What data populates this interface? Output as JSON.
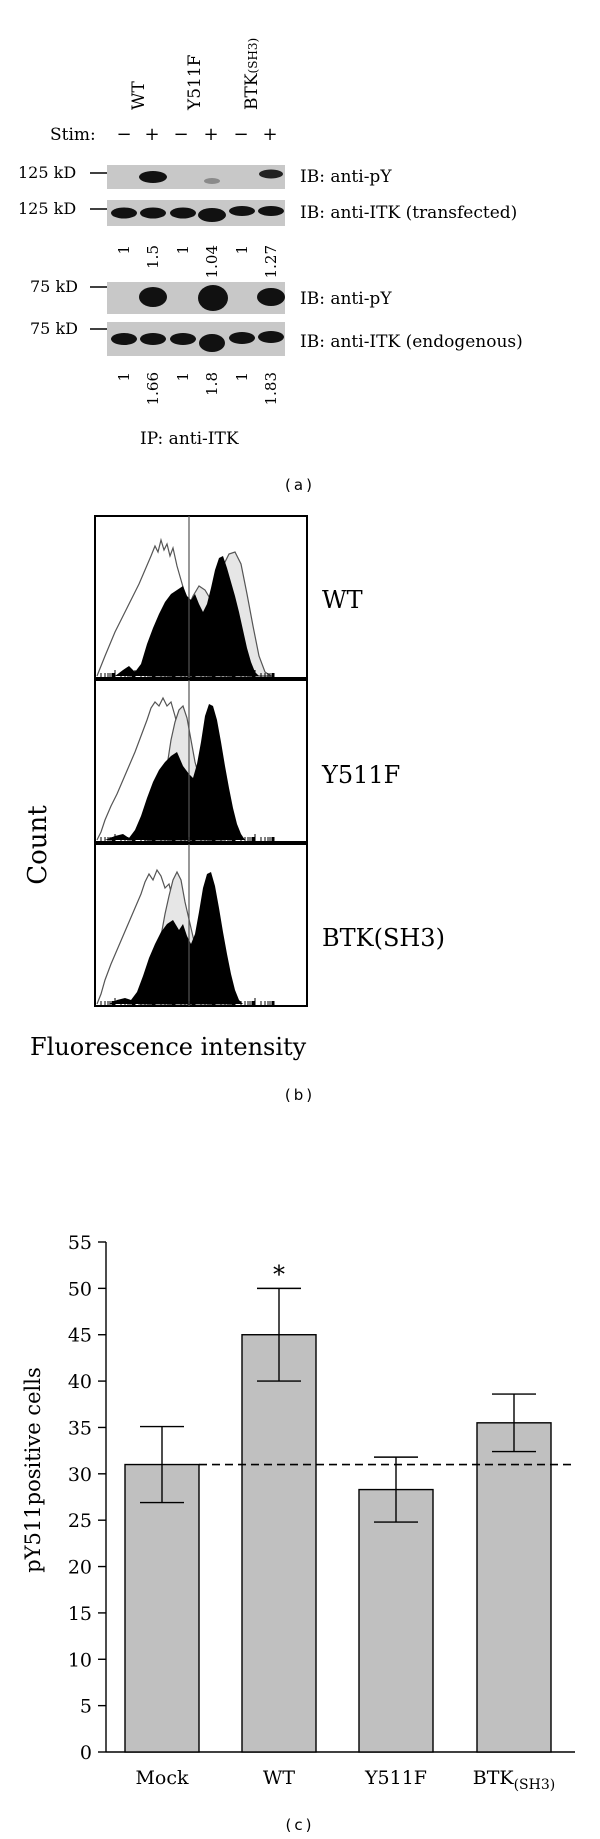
{
  "panel_a": {
    "lanes": [
      "WT",
      "Y511F",
      "BTK"
    ],
    "lane_sub": "(SH3)",
    "stim_label": "Stim:",
    "stim_signs": [
      "−",
      "+",
      "−",
      "+",
      "−",
      "+"
    ],
    "blot_rows": [
      {
        "marker": "125 kD",
        "label": "IB: anti-pY"
      },
      {
        "marker": "125 kD",
        "label": "IB: anti-ITK (transfected)"
      },
      {
        "marker": "75 kD",
        "label": "IB: anti-pY"
      },
      {
        "marker": "75 kD",
        "label": "IB: anti-ITK (endogenous)"
      }
    ],
    "quant_transfected": [
      "1",
      "1.5",
      "1",
      "1.04",
      "1",
      "1.27"
    ],
    "quant_endogenous": [
      "1",
      "1.66",
      "1",
      "1.8",
      "1",
      "1.83"
    ],
    "ip_label": "IP: anti-ITK",
    "caption": "(a)"
  },
  "panel_b": {
    "ylabel": "Count",
    "xlabel": "Fluorescence intensity",
    "hist_labels": [
      "WT",
      "Y511F",
      "BTK(SH3)"
    ],
    "caption": "(b)"
  },
  "panel_c": {
    "caption": "(c)",
    "star": "*",
    "tick_labels": [
      "0",
      "5",
      "10",
      "15",
      "20",
      "25",
      "30",
      "35",
      "40",
      "45",
      "50",
      "55"
    ],
    "category_main": [
      "Mock",
      "WT",
      "Y511F",
      "BTK"
    ],
    "category_sub": "(SH3)"
  },
  "chart_data": {
    "type": "bar",
    "categories": [
      "Mock",
      "WT",
      "Y511F",
      "BTK(SH3)"
    ],
    "values": [
      31,
      45,
      28.3,
      35.5
    ],
    "errors": [
      4.1,
      5.0,
      3.5,
      3.1
    ],
    "reference_line": 31,
    "ylabel": "pY511positive cells",
    "ylim": [
      0,
      55
    ],
    "yticks": [
      0,
      5,
      10,
      15,
      20,
      25,
      30,
      35,
      40,
      45,
      50,
      55
    ],
    "annotations": [
      {
        "category": "WT",
        "text": "*"
      }
    ],
    "colors": {
      "bar": "#c0c0c0",
      "stroke": "#000000"
    }
  }
}
